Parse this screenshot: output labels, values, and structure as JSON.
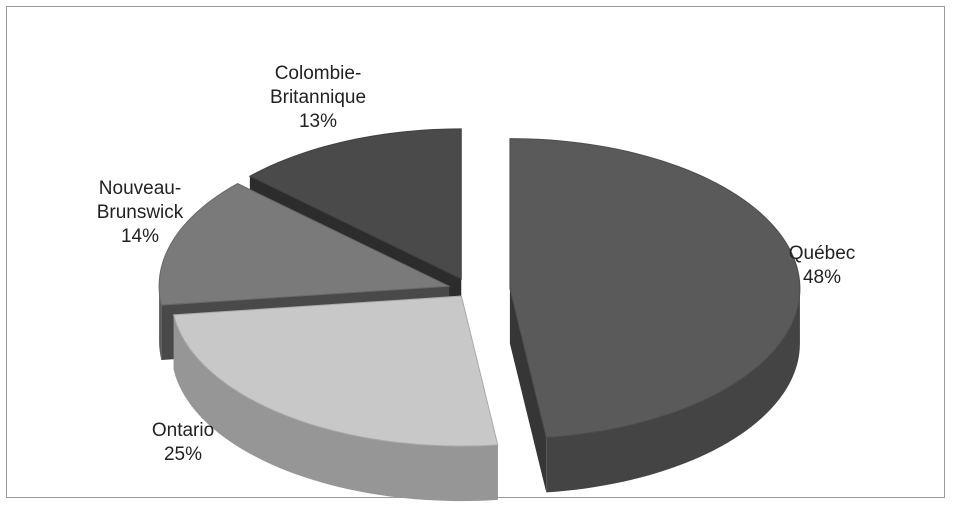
{
  "chart_data": {
    "type": "pie3d",
    "categories": [
      "Québec",
      "Ontario",
      "Nouveau-Brunswick",
      "Colombie-Britannique"
    ],
    "values": [
      48,
      25,
      14,
      13
    ],
    "value_labels": [
      "48%",
      "25%",
      "14%",
      "13%"
    ],
    "colors": [
      "#5a5a5a",
      "#c8c8c8",
      "#7a7a7a",
      "#4a4a4a"
    ]
  }
}
